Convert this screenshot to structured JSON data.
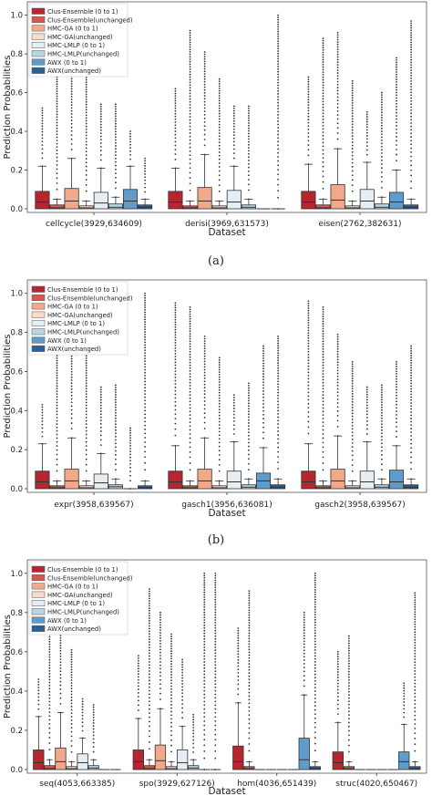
{
  "legend_entries": [
    {
      "label": "Clus-Ensemble (0 to 1)",
      "color": "#b5262e"
    },
    {
      "label": "Clus-Ensemble(unchanged)",
      "color": "#d9564c"
    },
    {
      "label": "HMC-GA (0 to 1)",
      "color": "#f1a98a"
    },
    {
      "label": "HMC-GA(unchanged)",
      "color": "#f8dccb"
    },
    {
      "label": "HMC-LMLP (0 to 1)",
      "color": "#e6eef3"
    },
    {
      "label": "HMC-LMLP(unchanged)",
      "color": "#b9d6e6"
    },
    {
      "label": "AWX (0 to 1)",
      "color": "#5e9ccb"
    },
    {
      "label": "AWX(unchanged)",
      "color": "#2b5f99"
    }
  ],
  "chart_data": [
    {
      "type": "box",
      "caption": "(a)",
      "xlabel": "Dataset",
      "ylabel": "Prediction Probabilities",
      "ylim": [
        0,
        1.05
      ],
      "yticks": [
        "0.0",
        "0.2",
        "0.4",
        "0.6",
        "0.8",
        "1.0"
      ],
      "legend_placement": "top-left",
      "grid": false,
      "categories": [
        "cellcycle(3929,634609)",
        "derisi(3969,631573)",
        "eisen(2762,382631)"
      ],
      "groups": [
        {
          "medians": [
            0.035,
            0.005,
            0.04,
            0.005,
            0.03,
            0.008,
            0.04,
            0.008
          ],
          "q3": [
            0.09,
            0.02,
            0.105,
            0.015,
            0.085,
            0.025,
            0.1,
            0.02
          ],
          "whisker_top": [
            0.22,
            0.05,
            0.26,
            0.04,
            0.21,
            0.06,
            0.22,
            0.05
          ],
          "outlier_top": [
            0.52,
            0.68,
            0.72,
            0.69,
            0.54,
            0.54,
            0.4,
            0.26
          ]
        },
        {
          "medians": [
            0.035,
            0.005,
            0.04,
            0.005,
            0.035,
            0.008,
            0.0,
            0.0
          ],
          "q3": [
            0.09,
            0.015,
            0.11,
            0.015,
            0.095,
            0.02,
            0.0,
            0.0
          ],
          "whisker_top": [
            0.21,
            0.04,
            0.28,
            0.04,
            0.22,
            0.05,
            0.0,
            0.0
          ],
          "outlier_top": [
            0.62,
            0.92,
            0.81,
            0.67,
            0.53,
            0.53,
            0.0,
            1.0
          ]
        },
        {
          "medians": [
            0.035,
            0.005,
            0.045,
            0.005,
            0.04,
            0.008,
            0.035,
            0.008
          ],
          "q3": [
            0.09,
            0.02,
            0.125,
            0.015,
            0.1,
            0.025,
            0.085,
            0.02
          ],
          "whisker_top": [
            0.23,
            0.05,
            0.31,
            0.04,
            0.24,
            0.06,
            0.2,
            0.05
          ],
          "outlier_top": [
            0.68,
            0.88,
            0.91,
            0.66,
            0.5,
            0.6,
            0.78,
            0.97
          ]
        }
      ]
    },
    {
      "type": "box",
      "caption": "(b)",
      "xlabel": "Dataset",
      "ylabel": "Prediction Probabilities",
      "ylim": [
        0,
        1.05
      ],
      "yticks": [
        "0.0",
        "0.2",
        "0.4",
        "0.6",
        "0.8",
        "1.0"
      ],
      "legend_placement": "top-left",
      "grid": false,
      "categories": [
        "expr(3958,639567)",
        "gasch1(3956,636081)",
        "gasch2(3958,639567)"
      ],
      "groups": [
        {
          "medians": [
            0.035,
            0.005,
            0.04,
            0.005,
            0.03,
            0.01,
            0.0,
            0.005
          ],
          "q3": [
            0.09,
            0.015,
            0.1,
            0.015,
            0.075,
            0.02,
            0.0,
            0.015
          ],
          "whisker_top": [
            0.23,
            0.04,
            0.26,
            0.04,
            0.18,
            0.05,
            0.0,
            0.04
          ],
          "outlier_top": [
            0.43,
            0.68,
            0.74,
            0.68,
            0.52,
            0.53,
            0.31,
            1.0
          ]
        },
        {
          "medians": [
            0.035,
            0.005,
            0.04,
            0.005,
            0.035,
            0.008,
            0.04,
            0.008
          ],
          "q3": [
            0.09,
            0.015,
            0.1,
            0.015,
            0.09,
            0.02,
            0.08,
            0.02
          ],
          "whisker_top": [
            0.22,
            0.04,
            0.26,
            0.04,
            0.24,
            0.05,
            0.21,
            0.05
          ],
          "outlier_top": [
            0.95,
            0.93,
            0.78,
            0.67,
            0.48,
            0.54,
            0.73,
            0.78
          ]
        },
        {
          "medians": [
            0.035,
            0.005,
            0.04,
            0.005,
            0.035,
            0.008,
            0.035,
            0.008
          ],
          "q3": [
            0.09,
            0.015,
            0.1,
            0.015,
            0.09,
            0.02,
            0.095,
            0.02
          ],
          "whisker_top": [
            0.23,
            0.04,
            0.27,
            0.04,
            0.24,
            0.05,
            0.22,
            0.05
          ],
          "outlier_top": [
            0.96,
            0.93,
            0.79,
            0.65,
            0.52,
            0.53,
            0.65,
            0.73
          ]
        }
      ]
    },
    {
      "type": "box",
      "caption": "",
      "xlabel": "Dataset",
      "ylabel": "Prediction Probabilities",
      "ylim": [
        0,
        1.05
      ],
      "yticks": [
        "0.0",
        "0.2",
        "0.4",
        "0.6",
        "0.8",
        "1.0"
      ],
      "legend_placement": "top-left",
      "grid": false,
      "categories": [
        "seq(4053,663385)",
        "spo(3929,627126)",
        "hom(4036,651439)",
        "struc(4020,650467)"
      ],
      "groups": [
        {
          "medians": [
            0.035,
            0.005,
            0.04,
            0.005,
            0.035,
            0.008,
            0.0,
            0.0
          ],
          "q3": [
            0.1,
            0.02,
            0.11,
            0.015,
            0.08,
            0.02,
            0.0,
            0.0
          ],
          "whisker_top": [
            0.27,
            0.05,
            0.29,
            0.04,
            0.16,
            0.05,
            0.0,
            0.0
          ],
          "outlier_top": [
            0.46,
            0.75,
            0.72,
            0.61,
            0.36,
            0.33,
            0.0,
            0.0
          ]
        },
        {
          "medians": [
            0.04,
            0.005,
            0.045,
            0.005,
            0.035,
            0.008,
            0.0,
            0.0
          ],
          "q3": [
            0.1,
            0.02,
            0.125,
            0.015,
            0.1,
            0.02,
            0.0,
            0.0
          ],
          "whisker_top": [
            0.26,
            0.05,
            0.31,
            0.04,
            0.22,
            0.05,
            0.0,
            0.0
          ],
          "outlier_top": [
            0.58,
            0.92,
            0.8,
            0.69,
            0.56,
            0.28,
            1.0,
            1.0
          ]
        },
        {
          "medians": [
            0.04,
            0.005,
            0.0,
            0.0,
            0.0,
            0.0,
            0.05,
            0.005
          ],
          "q3": [
            0.12,
            0.015,
            0.0,
            0.0,
            0.0,
            0.0,
            0.16,
            0.015
          ],
          "whisker_top": [
            0.34,
            0.04,
            0.0,
            0.0,
            0.0,
            0.0,
            0.38,
            0.04
          ],
          "outlier_top": [
            0.72,
            0.91,
            0.0,
            0.0,
            0.0,
            0.0,
            0.8,
            1.0
          ]
        },
        {
          "medians": [
            0.035,
            0.005,
            0.0,
            0.0,
            0.0,
            0.0,
            0.04,
            0.005
          ],
          "q3": [
            0.09,
            0.015,
            0.0,
            0.0,
            0.0,
            0.0,
            0.09,
            0.015
          ],
          "whisker_top": [
            0.24,
            0.04,
            0.0,
            0.0,
            0.0,
            0.0,
            0.23,
            0.04
          ],
          "outlier_top": [
            0.6,
            0.68,
            0.0,
            0.0,
            0.0,
            0.0,
            0.44,
            0.9
          ]
        }
      ]
    }
  ]
}
